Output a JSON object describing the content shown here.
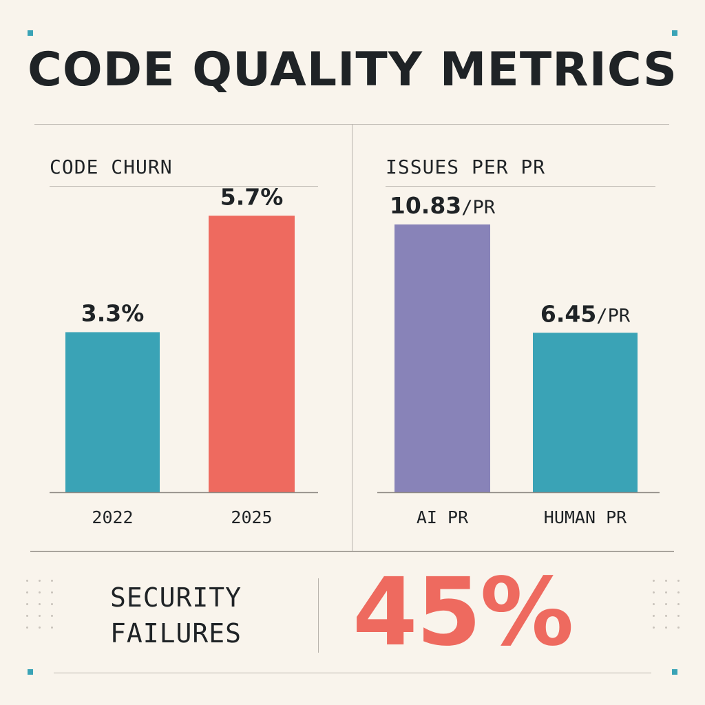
{
  "title": "CODE QUALITY METRICS",
  "colors": {
    "background": "#f9f4ec",
    "teal": "#3aa3b6",
    "coral": "#ee6a5f",
    "purple": "#8883b8",
    "text": "#1f2326"
  },
  "chart_data": [
    {
      "type": "bar",
      "title": "CODE CHURN",
      "categories": [
        "2022",
        "2025"
      ],
      "values": [
        3.3,
        5.7
      ],
      "value_labels": [
        "3.3%",
        "5.7%"
      ],
      "value_units": [
        "",
        ""
      ],
      "colors": [
        "#3aa3b6",
        "#ee6a5f"
      ],
      "ylim": [
        0,
        6.5
      ],
      "grid": false
    },
    {
      "type": "bar",
      "title": "ISSUES PER PR",
      "categories": [
        "AI PR",
        "HUMAN PR"
      ],
      "values": [
        10.83,
        6.45
      ],
      "value_labels": [
        "10.83",
        "6.45"
      ],
      "value_units": [
        "/PR",
        "/PR"
      ],
      "colors": [
        "#8883b8",
        "#3aa3b6"
      ],
      "ylim": [
        0,
        11.5
      ],
      "grid": false
    }
  ],
  "security": {
    "label_line1": "SECURITY",
    "label_line2": "FAILURES",
    "value": "45%"
  }
}
